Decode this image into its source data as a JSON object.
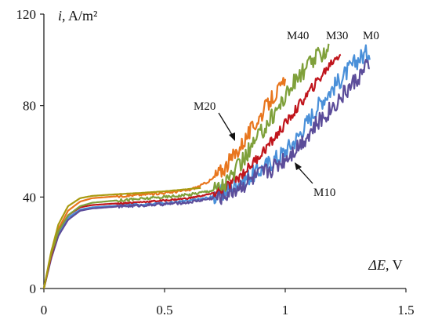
{
  "chart_data": {
    "type": "line",
    "xlabel_var": "ΔE",
    "xlabel_unit": ", V",
    "ylabel_var": "i",
    "ylabel_unit": ", A/m²",
    "xlim": [
      0,
      1.5
    ],
    "ylim": [
      0,
      120
    ],
    "xticks": [
      0,
      0.5,
      1,
      1.5
    ],
    "xtick_labels": [
      "0",
      "0.5",
      "1",
      "1.5"
    ],
    "yticks": [
      0,
      40,
      80,
      120
    ],
    "ytick_labels": [
      "0",
      "40",
      "80",
      "120"
    ],
    "grid": false,
    "series": [
      {
        "name": "M0",
        "color": "#4a90d9",
        "points": [
          [
            0,
            0
          ],
          [
            0.03,
            14
          ],
          [
            0.06,
            24
          ],
          [
            0.1,
            31
          ],
          [
            0.15,
            34.5
          ],
          [
            0.2,
            35.5
          ],
          [
            0.3,
            36.2
          ],
          [
            0.4,
            36.8
          ],
          [
            0.5,
            37.4
          ],
          [
            0.6,
            38.3
          ],
          [
            0.7,
            40
          ],
          [
            0.75,
            42
          ],
          [
            0.8,
            46
          ],
          [
            0.85,
            49
          ],
          [
            0.9,
            52
          ],
          [
            0.95,
            56
          ],
          [
            1.0,
            60
          ],
          [
            1.05,
            66
          ],
          [
            1.1,
            74
          ],
          [
            1.15,
            82
          ],
          [
            1.2,
            88
          ],
          [
            1.25,
            94
          ],
          [
            1.3,
            100
          ],
          [
            1.35,
            104
          ]
        ],
        "noise": 4
      },
      {
        "name": "M10",
        "color": "#5c4d9a",
        "points": [
          [
            0,
            0
          ],
          [
            0.03,
            13
          ],
          [
            0.06,
            23
          ],
          [
            0.1,
            30
          ],
          [
            0.15,
            34
          ],
          [
            0.2,
            35
          ],
          [
            0.3,
            35.8
          ],
          [
            0.4,
            36.3
          ],
          [
            0.5,
            36.9
          ],
          [
            0.6,
            37.7
          ],
          [
            0.7,
            39.5
          ],
          [
            0.75,
            41
          ],
          [
            0.8,
            44
          ],
          [
            0.85,
            47
          ],
          [
            0.9,
            50
          ],
          [
            0.95,
            53
          ],
          [
            1.0,
            57
          ],
          [
            1.05,
            62
          ],
          [
            1.1,
            68
          ],
          [
            1.15,
            74
          ],
          [
            1.2,
            80
          ],
          [
            1.25,
            86
          ],
          [
            1.3,
            92
          ],
          [
            1.35,
            98
          ]
        ],
        "noise": 4
      },
      {
        "name": "M20",
        "color": "#e8761e",
        "points": [
          [
            0,
            0
          ],
          [
            0.03,
            15
          ],
          [
            0.06,
            26
          ],
          [
            0.1,
            34
          ],
          [
            0.15,
            38
          ],
          [
            0.2,
            39.5
          ],
          [
            0.3,
            40.3
          ],
          [
            0.4,
            41
          ],
          [
            0.5,
            41.8
          ],
          [
            0.6,
            43
          ],
          [
            0.65,
            45
          ],
          [
            0.7,
            48
          ],
          [
            0.75,
            53
          ],
          [
            0.8,
            60
          ],
          [
            0.85,
            68
          ],
          [
            0.9,
            76
          ],
          [
            0.95,
            84
          ],
          [
            1.0,
            90
          ]
        ],
        "noise": 3.5
      },
      {
        "name": "M30",
        "color": "#c0151c",
        "points": [
          [
            0,
            0
          ],
          [
            0.03,
            14
          ],
          [
            0.06,
            25
          ],
          [
            0.1,
            32
          ],
          [
            0.15,
            35.5
          ],
          [
            0.2,
            36.5
          ],
          [
            0.3,
            37.2
          ],
          [
            0.4,
            37.8
          ],
          [
            0.5,
            38.5
          ],
          [
            0.6,
            39.5
          ],
          [
            0.7,
            41.5
          ],
          [
            0.75,
            44
          ],
          [
            0.8,
            48
          ],
          [
            0.85,
            53
          ],
          [
            0.9,
            59
          ],
          [
            0.95,
            65
          ],
          [
            1.0,
            72
          ],
          [
            1.05,
            79
          ],
          [
            1.1,
            86
          ],
          [
            1.15,
            93
          ],
          [
            1.2,
            100
          ],
          [
            1.23,
            103
          ]
        ],
        "noise": 2.2
      },
      {
        "name": "M40",
        "color": "#7fa03a",
        "points": [
          [
            0,
            0
          ],
          [
            0.03,
            15
          ],
          [
            0.06,
            25
          ],
          [
            0.1,
            32
          ],
          [
            0.15,
            36
          ],
          [
            0.2,
            37.5
          ],
          [
            0.3,
            38.5
          ],
          [
            0.4,
            39.2
          ],
          [
            0.5,
            40
          ],
          [
            0.6,
            41
          ],
          [
            0.7,
            43
          ],
          [
            0.75,
            46
          ],
          [
            0.8,
            52
          ],
          [
            0.85,
            60
          ],
          [
            0.9,
            68
          ],
          [
            0.95,
            76
          ],
          [
            1.0,
            84
          ],
          [
            1.05,
            92
          ],
          [
            1.1,
            98
          ],
          [
            1.15,
            103
          ],
          [
            1.18,
            105
          ]
        ],
        "noise": 4
      },
      {
        "name": "",
        "color": "#a89a10",
        "points": [
          [
            0,
            0
          ],
          [
            0.03,
            16
          ],
          [
            0.06,
            28
          ],
          [
            0.1,
            36
          ],
          [
            0.15,
            39.5
          ],
          [
            0.2,
            40.5
          ],
          [
            0.3,
            41.2
          ],
          [
            0.4,
            41.8
          ],
          [
            0.5,
            42.5
          ],
          [
            0.6,
            43.5
          ],
          [
            0.65,
            44
          ]
        ],
        "noise": 0.4
      }
    ],
    "annotations": [
      {
        "text": "M40",
        "series": "M40"
      },
      {
        "text": "M30",
        "series": "M30"
      },
      {
        "text": "M0",
        "series": "M0"
      },
      {
        "text": "M20",
        "series": "M20"
      },
      {
        "text": "M10",
        "series": "M10"
      }
    ]
  }
}
